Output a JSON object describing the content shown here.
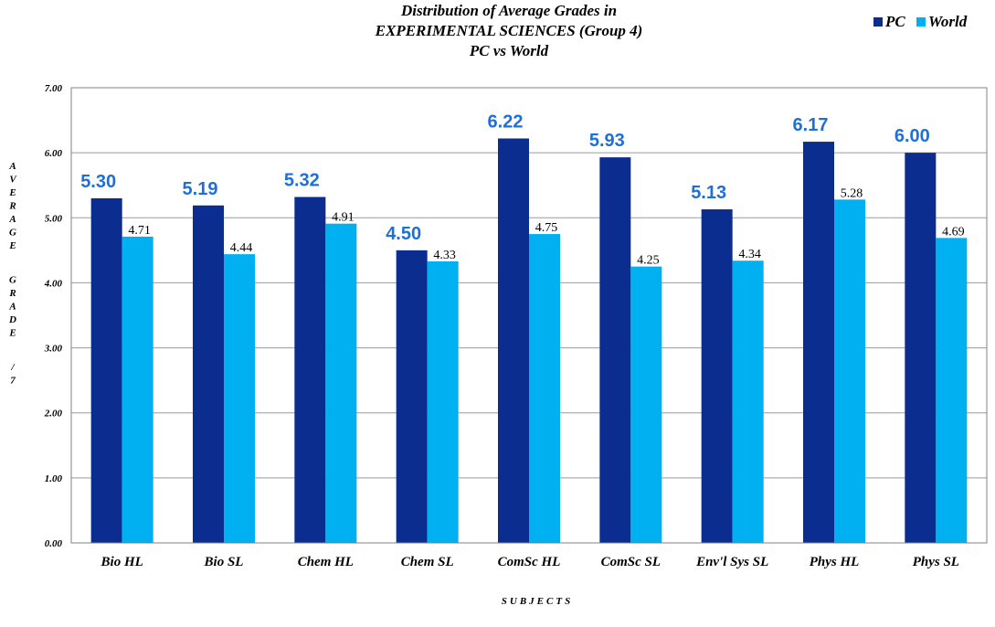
{
  "chart_data": {
    "type": "bar",
    "title": [
      "Distribution of Average Grades in",
      "EXPERIMENTAL SCIENCES (Group 4)",
      "PC vs World"
    ],
    "categories": [
      "Bio HL",
      "Bio SL",
      "Chem HL",
      "Chem SL",
      "ComSc HL",
      "ComSc SL",
      "Env'l Sys SL",
      "Phys HL",
      "Phys SL"
    ],
    "series": [
      {
        "name": "PC",
        "color": "#0b2d8f",
        "values": [
          5.3,
          5.19,
          5.32,
          4.5,
          6.22,
          5.93,
          5.13,
          6.17,
          6.0
        ],
        "labels": [
          "5.30",
          "5.19",
          "5.32",
          "4.50",
          "6.22",
          "5.93",
          "5.13",
          "6.17",
          "6.00"
        ],
        "label_color": "#1f6fd9"
      },
      {
        "name": "World",
        "color": "#00b0f0",
        "values": [
          4.71,
          4.44,
          4.91,
          4.33,
          4.75,
          4.25,
          4.34,
          5.28,
          4.69
        ],
        "labels": [
          "4.71",
          "4.44",
          "4.91",
          "4.33",
          "4.75",
          "4.25",
          "4.34",
          "5.28",
          "4.69"
        ],
        "label_color": "#000000"
      }
    ],
    "ylim": [
      0,
      7
    ],
    "yticks": [
      "0.00",
      "1.00",
      "2.00",
      "3.00",
      "4.00",
      "5.00",
      "6.00",
      "7.00"
    ],
    "ylabel": "AVERAGE GRADE /7",
    "xlabel": "SUBJECTS",
    "grid": true,
    "legend_position": "top-right"
  }
}
